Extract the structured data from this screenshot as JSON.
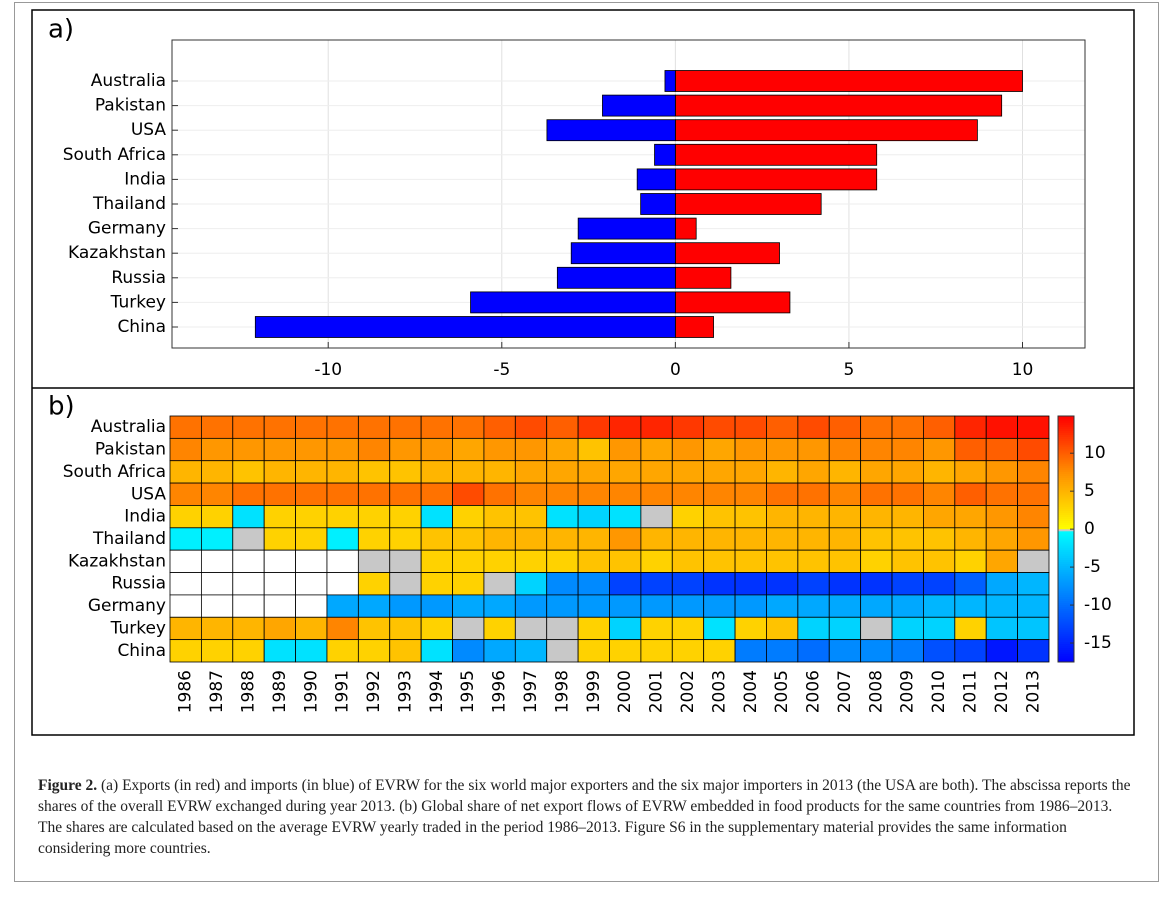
{
  "chart_data": [
    {
      "type": "hbar",
      "label": "a)",
      "categories": [
        "Australia",
        "Pakistan",
        "USA",
        "South Africa",
        "India",
        "Thailand",
        "Germany",
        "Kazakhstan",
        "Russia",
        "Turkey",
        "China"
      ],
      "series": [
        {
          "color": "#ff0000",
          "values": [
            10,
            9.4,
            8.7,
            5.8,
            5.8,
            4.2,
            0.6,
            3.0,
            1.6,
            3.3,
            1.1
          ]
        },
        {
          "color": "#0000ff",
          "values": [
            -0.3,
            -2.1,
            -3.7,
            -0.6,
            -1.1,
            -1.0,
            -2.8,
            -3.0,
            -3.4,
            -5.9,
            -12.1
          ]
        }
      ],
      "xlim": [
        -14.5,
        11.8
      ],
      "xticks": [
        -10,
        -5,
        0,
        5,
        10
      ],
      "grid": true
    },
    {
      "type": "heatmap",
      "label": "b)",
      "x": [
        "1986",
        "1987",
        "1988",
        "1989",
        "1990",
        "1991",
        "1992",
        "1993",
        "1994",
        "1995",
        "1996",
        "1997",
        "1998",
        "1999",
        "2000",
        "2001",
        "2002",
        "2003",
        "2004",
        "2005",
        "2006",
        "2007",
        "2008",
        "2009",
        "2010",
        "2011",
        "2012",
        "2013"
      ],
      "categories": [
        "Australia",
        "Pakistan",
        "South Africa",
        "USA",
        "India",
        "Thailand",
        "Kazakhstan",
        "Russia",
        "Germany",
        "Turkey",
        "China"
      ],
      "values": [
        [
          9,
          9,
          9,
          9,
          9,
          9,
          9,
          9,
          9,
          9,
          10,
          11,
          10,
          12,
          13,
          13,
          12,
          11,
          11,
          10,
          11,
          10,
          9,
          9,
          10,
          13,
          14,
          14
        ],
        [
          8,
          7,
          7,
          7,
          7,
          7,
          8,
          7,
          7,
          6,
          7,
          7,
          6,
          4,
          7,
          6,
          7,
          6,
          7,
          7,
          7,
          8,
          8,
          8,
          7,
          10,
          10,
          11
        ],
        [
          5,
          5,
          4,
          5,
          5,
          5,
          4,
          4,
          5,
          5,
          5,
          6,
          6,
          6,
          6,
          6,
          6,
          6,
          6,
          5,
          6,
          5,
          6,
          6,
          5,
          6,
          7,
          8
        ],
        [
          8,
          8,
          9,
          9,
          9,
          9,
          9,
          9,
          9,
          11,
          9,
          8,
          8,
          8,
          8,
          8,
          8,
          8,
          8,
          9,
          9,
          8,
          9,
          9,
          8,
          10,
          9,
          9
        ],
        [
          3,
          3,
          -2,
          3,
          3,
          3,
          3,
          3,
          -2,
          3,
          4,
          4,
          -2,
          -3,
          -2,
          0,
          3,
          4,
          4,
          5,
          5,
          5,
          5,
          5,
          6,
          6,
          7,
          8
        ],
        [
          -1,
          -1,
          0,
          3,
          3,
          -1,
          3,
          3,
          4,
          4,
          5,
          5,
          5,
          5,
          7,
          5,
          5,
          5,
          5,
          5,
          5,
          5,
          4,
          4,
          4,
          5,
          6,
          7
        ],
        [
          null,
          null,
          null,
          null,
          null,
          null,
          0,
          0,
          3,
          3,
          3,
          3,
          3,
          4,
          4,
          3,
          4,
          4,
          4,
          4,
          4,
          4,
          3,
          4,
          4,
          3,
          6,
          0
        ],
        [
          null,
          null,
          null,
          null,
          null,
          null,
          3,
          0,
          3,
          3,
          0,
          -3,
          -8,
          -8,
          -13,
          -13,
          -13,
          -14,
          -14,
          -14,
          -13,
          -14,
          -14,
          -13,
          -13,
          -11,
          -6,
          -5
        ],
        [
          null,
          null,
          null,
          null,
          null,
          -6,
          -6,
          -7,
          -7,
          -6,
          -6,
          -7,
          -7,
          -7,
          -7,
          -7,
          -7,
          -7,
          -7,
          -6,
          -6,
          -6,
          -6,
          -6,
          -5,
          -5,
          -5,
          -5
        ],
        [
          5,
          5,
          5,
          6,
          5,
          8,
          4,
          4,
          3,
          0,
          3,
          0,
          0,
          3,
          -3,
          3,
          3,
          -2,
          3,
          4,
          -3,
          -3,
          0,
          -3,
          -3,
          3,
          -4,
          -4
        ],
        [
          3,
          3,
          3,
          -2,
          -2,
          3,
          3,
          4,
          -2,
          -8,
          -6,
          -5,
          0,
          3,
          3,
          3,
          3,
          3,
          -9,
          -9,
          -10,
          -8,
          -8,
          -9,
          -12,
          -13,
          -16,
          -14
        ]
      ],
      "zlim": [
        -17.5,
        14.9
      ],
      "zticks": [
        10,
        5,
        0,
        -5,
        -10,
        -15
      ],
      "negative_colors": [
        "#0000ff",
        "#00ffff"
      ],
      "zero_color": "#c8c8c8",
      "positive_colors": [
        "#ffff00",
        "#ff9000",
        "#ff0000"
      ],
      "empty_color": "#ffffff"
    }
  ],
  "caption": {
    "label": "Figure 2.",
    "text": " (a) Exports (in red) and imports (in blue) of EVRW for the six world major exporters and the six major importers in 2013 (the USA are both). The abscissa reports the shares of the overall EVRW exchanged during year 2013. (b) Global share of net export flows of EVRW embedded in food products for the same countries from 1986–2013. The shares are calculated based on the average EVRW yearly traded in the period 1986–2013. Figure S6 in the supplementary material provides the same information considering more countries."
  }
}
